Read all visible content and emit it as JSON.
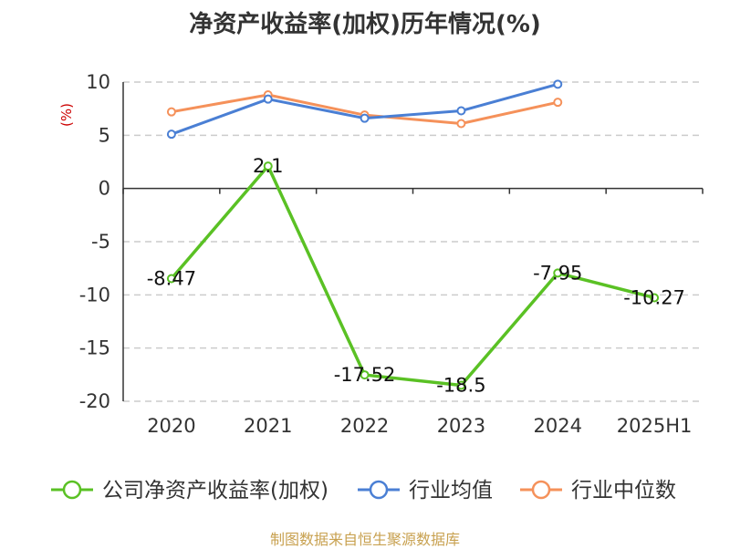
{
  "chart_data": {
    "type": "line",
    "title": "净资产收益率(加权)历年情况(%)",
    "ylabel": "(%)",
    "xlabel": "",
    "categories": [
      "2020",
      "2021",
      "2022",
      "2023",
      "2024",
      "2025H1"
    ],
    "ylim": [
      -20,
      10
    ],
    "yticks": [
      10,
      5,
      0,
      -5,
      -10,
      -15,
      -20
    ],
    "grid": true,
    "legend_position": "bottom",
    "series": [
      {
        "name": "公司净资产收益率(加权)",
        "color": "#5ac124",
        "values": [
          -8.47,
          2.1,
          -17.52,
          -18.5,
          -7.95,
          -10.27
        ],
        "labels": [
          "-8.47",
          "2.1",
          "-17.52",
          "-18.5",
          "-7.95",
          "-10.27"
        ]
      },
      {
        "name": "行业均值",
        "color": "#4a7fd4",
        "values": [
          5.1,
          8.4,
          6.6,
          7.3,
          9.8,
          null
        ]
      },
      {
        "name": "行业中位数",
        "color": "#f5915a",
        "values": [
          7.2,
          8.8,
          6.9,
          6.1,
          8.1,
          null
        ]
      }
    ]
  },
  "footer": {
    "source": "制图数据来自恒生聚源数据库"
  }
}
